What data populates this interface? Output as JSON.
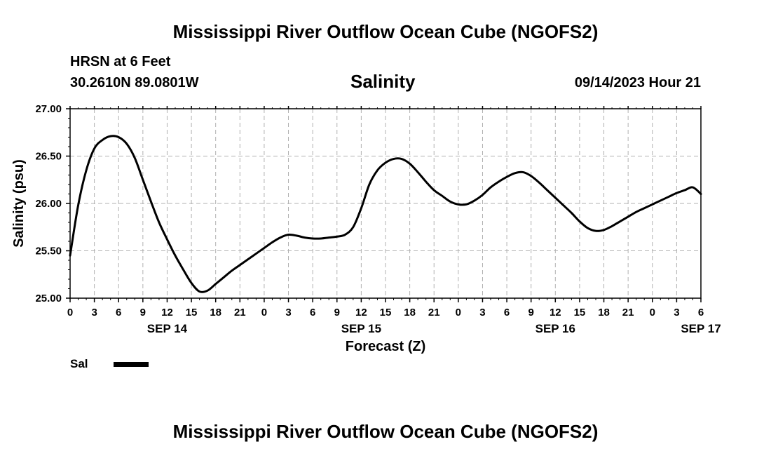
{
  "header": {
    "page_title": "Mississippi River Outflow Ocean Cube (NGOFS2)",
    "station_name": "HRSN at 6 Feet",
    "station_coords": "30.2610N  89.0801W",
    "variable_title": "Salinity",
    "datetime": "09/14/2023 Hour 21"
  },
  "footer": {
    "page_title": "Mississippi River Outflow Ocean Cube (NGOFS2)"
  },
  "legend": {
    "label": "Sal",
    "color": "#000000"
  },
  "chart_data": {
    "type": "line",
    "title": "Salinity",
    "xlabel": "Forecast (Z)",
    "ylabel": "Salinity (psu)",
    "ylim": [
      25.0,
      27.0
    ],
    "yticks": [
      "25.00",
      "25.50",
      "26.00",
      "26.50",
      "27.00"
    ],
    "xlim": [
      0,
      78
    ],
    "x_unit": "hours from 09/14/2023 00Z",
    "xtick_labels": [
      "0",
      "3",
      "6",
      "9",
      "12",
      "15",
      "18",
      "21",
      "0",
      "3",
      "6",
      "9",
      "12",
      "15",
      "18",
      "21",
      "0",
      "3",
      "6",
      "9",
      "12",
      "15",
      "18",
      "21",
      "0",
      "3",
      "6"
    ],
    "day_labels": [
      {
        "x": 12,
        "label": "SEP 14"
      },
      {
        "x": 36,
        "label": "SEP 15"
      },
      {
        "x": 60,
        "label": "SEP 16"
      },
      {
        "x": 78,
        "label": "SEP 17"
      }
    ],
    "grid": true,
    "line_color": "#000000",
    "series": [
      {
        "name": "Sal",
        "x": [
          0,
          1,
          2,
          3,
          4,
          5,
          6,
          7,
          8,
          9,
          10,
          11,
          12,
          13,
          14,
          15,
          16,
          17,
          18,
          19,
          20,
          21,
          22,
          23,
          24,
          25,
          26,
          27,
          28,
          29,
          30,
          31,
          32,
          33,
          34,
          35,
          36,
          37,
          38,
          39,
          40,
          41,
          42,
          43,
          44,
          45,
          46,
          47,
          48,
          49,
          50,
          51,
          52,
          53,
          54,
          55,
          56,
          57,
          58,
          59,
          60,
          61,
          62,
          63,
          64,
          65,
          66,
          67,
          68,
          69,
          70,
          71,
          72,
          73,
          74,
          75,
          76,
          77,
          78
        ],
        "values": [
          25.45,
          25.98,
          26.35,
          26.58,
          26.67,
          26.71,
          26.7,
          26.63,
          26.48,
          26.25,
          26.02,
          25.8,
          25.62,
          25.45,
          25.3,
          25.16,
          25.07,
          25.08,
          25.15,
          25.22,
          25.29,
          25.35,
          25.41,
          25.47,
          25.53,
          25.59,
          25.64,
          25.67,
          25.66,
          25.64,
          25.63,
          25.63,
          25.64,
          25.65,
          25.67,
          25.75,
          25.95,
          26.2,
          26.35,
          26.43,
          26.47,
          26.47,
          26.42,
          26.33,
          26.23,
          26.14,
          26.08,
          26.02,
          25.99,
          25.99,
          26.03,
          26.09,
          26.17,
          26.23,
          26.28,
          26.32,
          26.33,
          26.29,
          26.22,
          26.14,
          26.06,
          25.98,
          25.9,
          25.81,
          25.74,
          25.71,
          25.72,
          25.76,
          25.81,
          25.86,
          25.91,
          25.95,
          25.99,
          26.03,
          26.07,
          26.11,
          26.14,
          26.17,
          26.1
        ]
      }
    ]
  }
}
